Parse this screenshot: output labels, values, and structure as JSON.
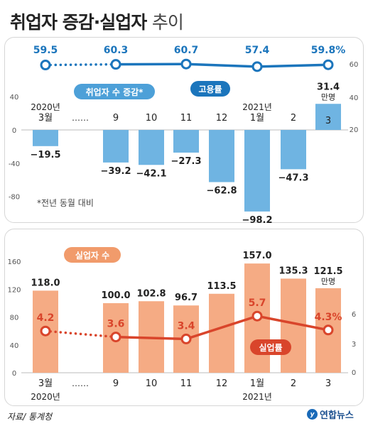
{
  "title": {
    "main": "취업자 증감·실업자",
    "light": "추이"
  },
  "source": "자료/ 통계청",
  "publisher": "연합뉴스",
  "colors": {
    "employed_bar": "#6fb4e2",
    "rate_line_blue": "#1b75bc",
    "unemployed_bar": "#f5ab84",
    "rate_line_red": "#d9452b"
  },
  "chart_data": [
    {
      "type": "bar+line",
      "name": "취업자 수 증감*",
      "unit": "만명",
      "footnote": "*전년 동월 대비",
      "categories": [
        "3월",
        "9",
        "10",
        "11",
        "12",
        "1월",
        "2",
        "3"
      ],
      "year_labels": {
        "start": "2020년",
        "mid": "2021년"
      },
      "gap_marker": "……",
      "values": [
        -19.5,
        -39.2,
        -42.1,
        -27.3,
        -62.8,
        -98.2,
        -47.3,
        31.4
      ],
      "value_labels": [
        "−19.5",
        "−39.2",
        "−42.1",
        "−27.3",
        "−62.8",
        "−98.2",
        "−47.3",
        "31.4"
      ],
      "left_axis": {
        "range": [
          -100,
          40
        ],
        "ticks": [
          "40",
          "0",
          "-40",
          "-80"
        ]
      },
      "line": {
        "name": "고용률",
        "values": [
          59.5,
          60.3,
          60.7,
          57.4,
          59.8
        ],
        "value_labels": [
          "59.5",
          "60.3",
          "60.7",
          "57.4",
          "59.8%"
        ],
        "category_index": [
          0,
          1,
          3,
          5,
          7
        ],
        "right_axis": {
          "ticks": [
            "60",
            "40",
            "20"
          ]
        }
      }
    },
    {
      "type": "bar+line",
      "name": "실업자 수",
      "unit": "만명",
      "categories": [
        "3월",
        "9",
        "10",
        "11",
        "12",
        "1월",
        "2",
        "3"
      ],
      "year_labels": {
        "start": "2020년",
        "mid": "2021년"
      },
      "gap_marker": "……",
      "values": [
        118.0,
        100.0,
        102.8,
        96.7,
        113.5,
        157.0,
        135.3,
        121.5
      ],
      "value_labels": [
        "118.0",
        "100.0",
        "102.8",
        "96.7",
        "113.5",
        "157.0",
        "135.3",
        "121.5"
      ],
      "left_axis": {
        "range": [
          0,
          160
        ],
        "ticks": [
          "160",
          "120",
          "80",
          "40",
          "0"
        ]
      },
      "line": {
        "name": "실업률",
        "values": [
          4.2,
          3.6,
          3.4,
          5.7,
          4.3
        ],
        "value_labels": [
          "4.2",
          "3.6",
          "3.4",
          "5.7",
          "4.3%"
        ],
        "category_index": [
          0,
          1,
          3,
          5,
          7
        ],
        "right_axis": {
          "ticks": [
            "6",
            "3",
            "0"
          ]
        }
      }
    }
  ]
}
